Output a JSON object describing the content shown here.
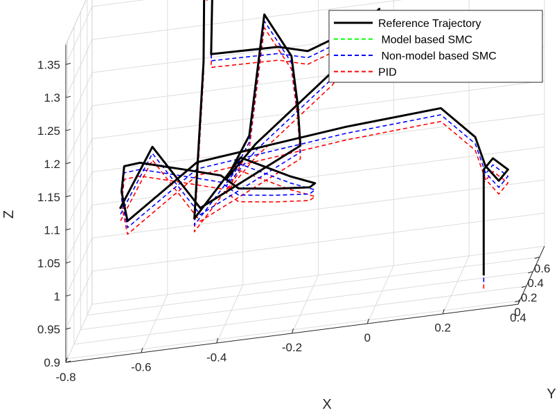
{
  "chart_data": {
    "type": "line",
    "projection": "3d",
    "title": "",
    "xlabel": "X",
    "ylabel": "Y",
    "zlabel": "Z",
    "xlim": [
      -0.8,
      0.4
    ],
    "ylim": [
      -0.05,
      0.75
    ],
    "zlim": [
      0.9,
      1.38
    ],
    "grid": true,
    "legend_position": "top-right",
    "x_ticks": [
      "-0.8",
      "-0.6",
      "-0.4",
      "-0.2",
      "0",
      "0.2",
      "0.4"
    ],
    "y_ticks": [
      "0",
      "0.2",
      "0.4",
      "0.6"
    ],
    "z_ticks": [
      "0.9",
      "0.95",
      "1",
      "1.05",
      "1.1",
      "1.15",
      "1.2",
      "1.25",
      "1.3",
      "1.35"
    ],
    "colors": {
      "reference": "#000000",
      "model_smc": "#00ff00",
      "nonmodel_smc": "#0000ff",
      "pid": "#ff0000"
    },
    "legend": [
      "Reference Trajectory",
      " Model based SMC",
      " Non-model based SMC",
      "PID"
    ],
    "series": [
      {
        "name": "Reference Trajectory",
        "style": "solid",
        "points": [
          [
            0.3,
            0.05,
            0.94
          ],
          [
            0.3,
            0.05,
            1.1
          ],
          [
            0.32,
            0.1,
            1.11
          ],
          [
            0.36,
            0.1,
            1.09
          ],
          [
            0.34,
            0.05,
            1.08
          ],
          [
            0.3,
            0.1,
            1.1
          ],
          [
            0.26,
            0.25,
            1.13
          ],
          [
            0.16,
            0.35,
            1.17
          ],
          [
            -0.1,
            0.45,
            1.15
          ],
          [
            -0.5,
            0.5,
            1.12
          ],
          [
            -0.68,
            0.45,
            1.05
          ],
          [
            -0.7,
            0.5,
            1.09
          ],
          [
            -0.7,
            0.58,
            1.12
          ],
          [
            -0.66,
            0.6,
            1.12
          ],
          [
            -0.55,
            0.62,
            1.1
          ],
          [
            -0.45,
            0.65,
            1.08
          ],
          [
            -0.4,
            0.62,
            1.06
          ],
          [
            -0.3,
            0.55,
            1.06
          ],
          [
            -0.21,
            0.6,
            1.05
          ],
          [
            -0.2,
            0.65,
            1.05
          ],
          [
            -0.27,
            0.7,
            1.06
          ],
          [
            -0.4,
            0.68,
            1.1
          ],
          [
            -0.52,
            0.65,
            1.02
          ],
          [
            -0.5,
            0.7,
            1.25
          ],
          [
            -0.5,
            0.72,
            1.36
          ],
          [
            -0.48,
            0.74,
            1.36
          ],
          [
            -0.48,
            0.7,
            1.26
          ],
          [
            -0.3,
            0.68,
            1.26
          ],
          [
            -0.22,
            0.66,
            1.25
          ],
          [
            -0.08,
            0.64,
            1.28
          ],
          [
            -0.03,
            0.66,
            1.3
          ],
          [
            -0.15,
            0.6,
            1.22
          ],
          [
            -0.35,
            0.56,
            1.13
          ],
          [
            -0.43,
            0.58,
            1.08
          ],
          [
            -0.37,
            0.6,
            1.14
          ],
          [
            -0.33,
            0.6,
            1.32
          ],
          [
            -0.26,
            0.62,
            1.25
          ],
          [
            -0.24,
            0.58,
            1.18
          ],
          [
            -0.23,
            0.55,
            1.12
          ],
          [
            -0.5,
            0.6,
            1.04
          ],
          [
            -0.62,
            0.52,
            1.15
          ],
          [
            -0.7,
            0.45,
            1.07
          ]
        ]
      },
      {
        "name": " Model based SMC",
        "style": "dashed",
        "points": [
          [
            0.3,
            0.05,
            0.94
          ],
          [
            0.3,
            0.05,
            1.1
          ],
          [
            0.32,
            0.1,
            1.11
          ],
          [
            0.36,
            0.1,
            1.09
          ],
          [
            0.34,
            0.05,
            1.08
          ],
          [
            0.3,
            0.1,
            1.1
          ],
          [
            0.26,
            0.25,
            1.13
          ],
          [
            0.16,
            0.35,
            1.17
          ],
          [
            -0.1,
            0.45,
            1.15
          ],
          [
            -0.5,
            0.5,
            1.12
          ],
          [
            -0.68,
            0.45,
            1.05
          ],
          [
            -0.7,
            0.5,
            1.09
          ],
          [
            -0.7,
            0.58,
            1.12
          ],
          [
            -0.66,
            0.6,
            1.12
          ],
          [
            -0.55,
            0.62,
            1.1
          ],
          [
            -0.45,
            0.65,
            1.08
          ],
          [
            -0.4,
            0.62,
            1.06
          ],
          [
            -0.3,
            0.55,
            1.06
          ],
          [
            -0.21,
            0.6,
            1.05
          ],
          [
            -0.2,
            0.65,
            1.05
          ],
          [
            -0.27,
            0.7,
            1.06
          ],
          [
            -0.4,
            0.68,
            1.1
          ],
          [
            -0.52,
            0.65,
            1.02
          ],
          [
            -0.5,
            0.7,
            1.25
          ],
          [
            -0.5,
            0.72,
            1.36
          ],
          [
            -0.48,
            0.74,
            1.36
          ],
          [
            -0.48,
            0.7,
            1.26
          ],
          [
            -0.3,
            0.68,
            1.26
          ],
          [
            -0.22,
            0.66,
            1.25
          ],
          [
            -0.08,
            0.64,
            1.28
          ],
          [
            -0.03,
            0.66,
            1.3
          ],
          [
            -0.15,
            0.6,
            1.22
          ],
          [
            -0.35,
            0.56,
            1.13
          ],
          [
            -0.43,
            0.58,
            1.08
          ],
          [
            -0.37,
            0.6,
            1.14
          ],
          [
            -0.33,
            0.6,
            1.32
          ],
          [
            -0.26,
            0.62,
            1.25
          ],
          [
            -0.24,
            0.58,
            1.18
          ],
          [
            -0.23,
            0.55,
            1.12
          ],
          [
            -0.5,
            0.6,
            1.04
          ],
          [
            -0.62,
            0.52,
            1.15
          ],
          [
            -0.7,
            0.45,
            1.07
          ]
        ]
      },
      {
        "name": " Non-model based SMC",
        "style": "dashed",
        "points": [
          [
            0.3,
            0.05,
            0.93
          ],
          [
            0.3,
            0.05,
            1.09
          ],
          [
            0.32,
            0.1,
            1.1
          ],
          [
            0.36,
            0.1,
            1.08
          ],
          [
            0.34,
            0.05,
            1.07
          ],
          [
            0.3,
            0.1,
            1.09
          ],
          [
            0.26,
            0.25,
            1.12
          ],
          [
            0.16,
            0.35,
            1.16
          ],
          [
            -0.1,
            0.45,
            1.14
          ],
          [
            -0.5,
            0.5,
            1.11
          ],
          [
            -0.68,
            0.45,
            1.04
          ],
          [
            -0.7,
            0.5,
            1.08
          ],
          [
            -0.7,
            0.58,
            1.11
          ],
          [
            -0.66,
            0.6,
            1.11
          ],
          [
            -0.55,
            0.62,
            1.09
          ],
          [
            -0.45,
            0.65,
            1.07
          ],
          [
            -0.4,
            0.62,
            1.05
          ],
          [
            -0.3,
            0.55,
            1.05
          ],
          [
            -0.21,
            0.6,
            1.04
          ],
          [
            -0.2,
            0.65,
            1.04
          ],
          [
            -0.27,
            0.7,
            1.05
          ],
          [
            -0.4,
            0.68,
            1.09
          ],
          [
            -0.52,
            0.65,
            1.01
          ],
          [
            -0.5,
            0.7,
            1.24
          ],
          [
            -0.5,
            0.72,
            1.35
          ],
          [
            -0.48,
            0.74,
            1.35
          ],
          [
            -0.48,
            0.7,
            1.25
          ],
          [
            -0.3,
            0.68,
            1.25
          ],
          [
            -0.22,
            0.66,
            1.24
          ],
          [
            -0.08,
            0.64,
            1.27
          ],
          [
            -0.03,
            0.66,
            1.29
          ],
          [
            -0.15,
            0.6,
            1.21
          ],
          [
            -0.35,
            0.56,
            1.12
          ],
          [
            -0.43,
            0.58,
            1.07
          ],
          [
            -0.37,
            0.6,
            1.13
          ],
          [
            -0.33,
            0.6,
            1.31
          ],
          [
            -0.26,
            0.62,
            1.24
          ],
          [
            -0.24,
            0.58,
            1.17
          ],
          [
            -0.23,
            0.55,
            1.11
          ],
          [
            -0.5,
            0.6,
            1.03
          ],
          [
            -0.62,
            0.52,
            1.14
          ],
          [
            -0.7,
            0.45,
            1.06
          ]
        ]
      },
      {
        "name": "PID",
        "style": "dashed",
        "points": [
          [
            0.3,
            0.05,
            0.92
          ],
          [
            0.3,
            0.05,
            1.08
          ],
          [
            0.32,
            0.1,
            1.09
          ],
          [
            0.36,
            0.1,
            1.07
          ],
          [
            0.34,
            0.05,
            1.06
          ],
          [
            0.3,
            0.1,
            1.08
          ],
          [
            0.26,
            0.25,
            1.11
          ],
          [
            0.16,
            0.35,
            1.15
          ],
          [
            -0.1,
            0.45,
            1.13
          ],
          [
            -0.5,
            0.5,
            1.1
          ],
          [
            -0.68,
            0.45,
            1.03
          ],
          [
            -0.7,
            0.5,
            1.07
          ],
          [
            -0.7,
            0.58,
            1.1
          ],
          [
            -0.66,
            0.6,
            1.1
          ],
          [
            -0.55,
            0.62,
            1.08
          ],
          [
            -0.45,
            0.65,
            1.06
          ],
          [
            -0.4,
            0.62,
            1.04
          ],
          [
            -0.3,
            0.55,
            1.04
          ],
          [
            -0.21,
            0.6,
            1.03
          ],
          [
            -0.2,
            0.65,
            1.03
          ],
          [
            -0.27,
            0.7,
            1.04
          ],
          [
            -0.4,
            0.68,
            1.08
          ],
          [
            -0.52,
            0.65,
            1.0
          ],
          [
            -0.5,
            0.7,
            1.23
          ],
          [
            -0.5,
            0.72,
            1.34
          ],
          [
            -0.48,
            0.74,
            1.34
          ],
          [
            -0.48,
            0.7,
            1.24
          ],
          [
            -0.3,
            0.68,
            1.24
          ],
          [
            -0.22,
            0.66,
            1.23
          ],
          [
            -0.08,
            0.64,
            1.26
          ],
          [
            -0.03,
            0.66,
            1.28
          ],
          [
            -0.15,
            0.6,
            1.2
          ],
          [
            -0.35,
            0.56,
            1.11
          ],
          [
            -0.43,
            0.58,
            1.06
          ],
          [
            -0.37,
            0.6,
            1.12
          ],
          [
            -0.33,
            0.6,
            1.3
          ],
          [
            -0.26,
            0.62,
            1.23
          ],
          [
            -0.24,
            0.58,
            1.16
          ],
          [
            -0.23,
            0.55,
            1.1
          ],
          [
            -0.5,
            0.6,
            1.02
          ],
          [
            -0.62,
            0.52,
            1.13
          ],
          [
            -0.7,
            0.45,
            1.05
          ]
        ]
      }
    ]
  }
}
